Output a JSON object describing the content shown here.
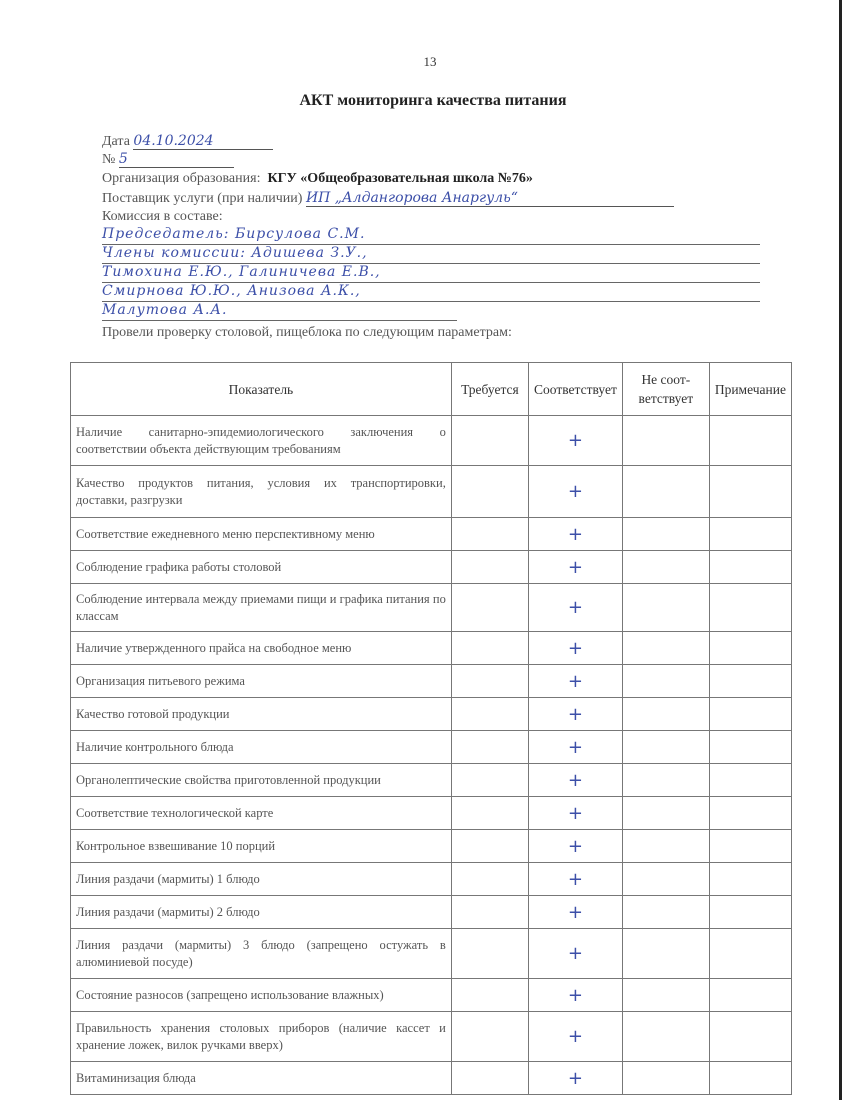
{
  "page_number": "13",
  "title": "АКТ мониторинга качества питания",
  "date_label": "Дата",
  "date_value": "04.10.2024",
  "number_label": "№",
  "number_value": "5",
  "org_label": "Организация образования:",
  "org_value": "КГУ «Общеобразовательная школа №76»",
  "supplier_label": "Поставщик услуги (при наличии)",
  "supplier_value": "ИП „Алдангорова Анаргуль“",
  "commission_label": "Комиссия в составе:",
  "commission_lines": [
    "Председатель: Бирсулова С.М.",
    "Члены комиссии: Адишева З.У.,",
    "Тимохина Е.Ю., Галиничева Е.В.,",
    "Смирнова Ю.Ю., Анизова А.К.,",
    "Малутова А.А."
  ],
  "check_intro": "Провели проверку столовой, пищеблока по следующим параметрам:",
  "table": {
    "headers": [
      "Показатель",
      "Требуется",
      "Соответствует",
      "Не соот-ветствует",
      "Примечание"
    ],
    "rows": [
      {
        "indicator": "Наличие санитарно-эпидемиологического заключения о соответствии объекта действующим требованиям",
        "mark": "+"
      },
      {
        "indicator": "Качество продуктов питания, условия их транспортировки, доставки, разгрузки",
        "mark": "+"
      },
      {
        "indicator": "Соответствие ежедневного меню перспективному меню",
        "mark": "+"
      },
      {
        "indicator": "Соблюдение графика работы столовой",
        "mark": "+"
      },
      {
        "indicator": "Соблюдение интервала между приемами пищи и графика питания по классам",
        "mark": "+"
      },
      {
        "indicator": "Наличие утвержденного прайса на свободное меню",
        "mark": "+"
      },
      {
        "indicator": "Организация питьевого режима",
        "mark": "+"
      },
      {
        "indicator": "Качество готовой продукции",
        "mark": "+"
      },
      {
        "indicator": "Наличие контрольного блюда",
        "mark": "+"
      },
      {
        "indicator": "Органолептические свойства приготовленной продукции",
        "mark": "+"
      },
      {
        "indicator": "Соответствие технологической карте",
        "mark": "+"
      },
      {
        "indicator": "Контрольное взвешивание 10 порций",
        "mark": "+"
      },
      {
        "indicator": "Линия раздачи (мармиты) 1 блюдо",
        "mark": "+"
      },
      {
        "indicator": "Линия раздачи (мармиты) 2 блюдо",
        "mark": "+"
      },
      {
        "indicator": "Линия раздачи (мармиты) 3 блюдо (запрещено остужать в алюминиевой посуде)",
        "mark": "+"
      },
      {
        "indicator": "Состояние разносов (запрещено использование влажных)",
        "mark": "+"
      },
      {
        "indicator": "Правильность хранения столовых приборов (наличие кассет и хранение ложек, вилок ручками вверх)",
        "mark": "+"
      },
      {
        "indicator": "Витаминизация блюда",
        "mark": "+"
      }
    ]
  }
}
